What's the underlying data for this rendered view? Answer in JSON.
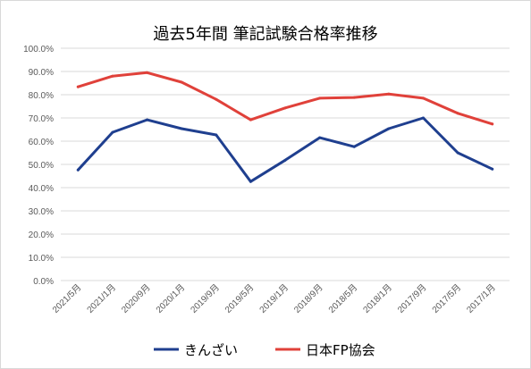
{
  "chart_data": {
    "type": "line",
    "title": "過去5年間 筆記試験合格率推移",
    "categories": [
      "2021/5月",
      "2021/1月",
      "2020/9月",
      "2020/1月",
      "2019/9月",
      "2019/5月",
      "2019/1月",
      "2018/9月",
      "2018/5月",
      "2018/1月",
      "2017/9月",
      "2017/5月",
      "2017/1月"
    ],
    "series": [
      {
        "name": "きんざい",
        "color": "#1f3f8f",
        "values": [
          47.6,
          63.8,
          69.2,
          65.4,
          62.7,
          42.6,
          51.8,
          61.5,
          57.6,
          65.4,
          70.0,
          55.0,
          48.0
        ]
      },
      {
        "name": "日本FP協会",
        "color": "#e0413a",
        "values": [
          83.4,
          88.0,
          89.5,
          85.4,
          78.0,
          69.2,
          74.3,
          78.5,
          78.8,
          80.3,
          78.5,
          72.0,
          67.4
        ]
      }
    ],
    "yticks": [
      "0.0%",
      "10.0%",
      "20.0%",
      "30.0%",
      "40.0%",
      "50.0%",
      "60.0%",
      "70.0%",
      "80.0%",
      "90.0%",
      "100.0%"
    ],
    "ylim": [
      0,
      100
    ],
    "grid": true,
    "legend": "bottom"
  }
}
